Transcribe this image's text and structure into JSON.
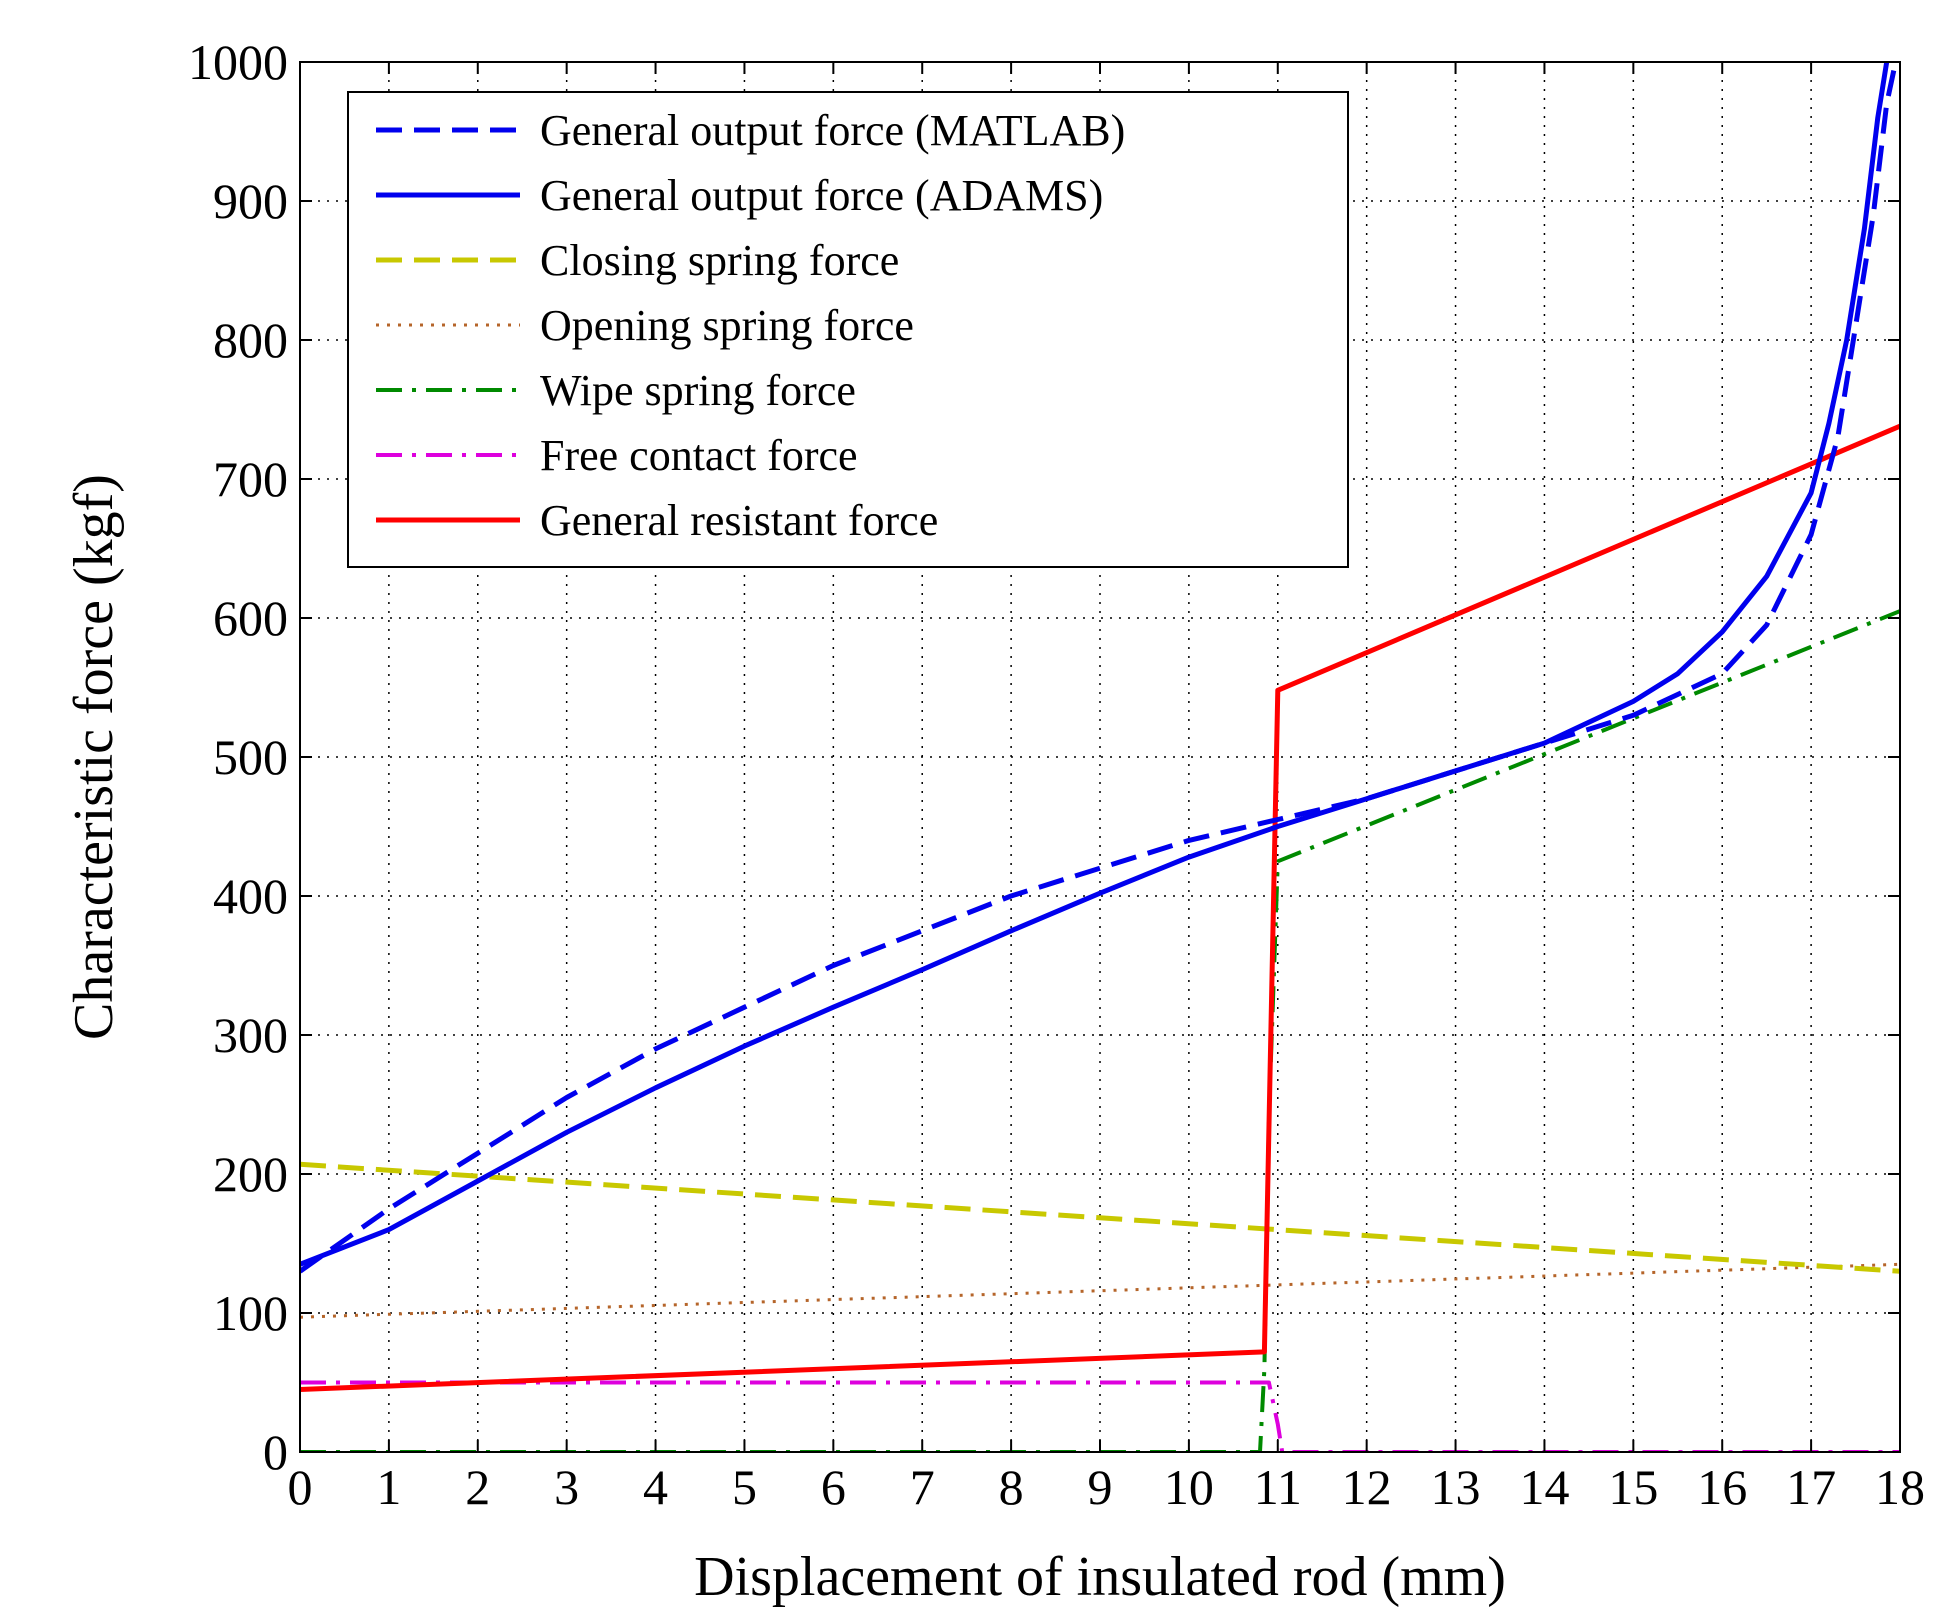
{
  "chart_data": {
    "type": "line",
    "title": "",
    "xlabel": "Displacement of insulated rod (mm)",
    "ylabel": "Characteristic force (kgf)",
    "xlim": [
      0,
      18
    ],
    "ylim": [
      0,
      1000
    ],
    "xticks": [
      0,
      1,
      2,
      3,
      4,
      5,
      6,
      7,
      8,
      9,
      10,
      11,
      12,
      13,
      14,
      15,
      16,
      17,
      18
    ],
    "yticks": [
      0,
      100,
      200,
      300,
      400,
      500,
      600,
      700,
      800,
      900,
      1000
    ],
    "grid": true,
    "legend_position": "top-left",
    "series": [
      {
        "name": "General output force (MATLAB)",
        "color": "#0000ee",
        "style": "dashed",
        "x": [
          0,
          1,
          2,
          3,
          4,
          5,
          6,
          7,
          8,
          9,
          10,
          11,
          12,
          13,
          14,
          15,
          16,
          16.5,
          17,
          17.3,
          17.5,
          17.7,
          17.85,
          17.95
        ],
        "y": [
          130,
          175,
          215,
          255,
          290,
          320,
          350,
          375,
          400,
          420,
          440,
          455,
          470,
          490,
          510,
          530,
          560,
          595,
          660,
          730,
          810,
          890,
          970,
          1000
        ]
      },
      {
        "name": "General output force (ADAMS)",
        "color": "#0000ee",
        "style": "solid",
        "x": [
          0,
          1,
          2,
          3,
          4,
          5,
          6,
          7,
          8,
          9,
          10,
          11,
          12,
          13,
          14,
          15,
          15.5,
          16,
          16.5,
          17,
          17.2,
          17.4,
          17.6,
          17.75,
          17.85
        ],
        "y": [
          135,
          160,
          195,
          230,
          262,
          292,
          320,
          347,
          375,
          402,
          428,
          450,
          470,
          490,
          510,
          540,
          560,
          590,
          630,
          690,
          740,
          800,
          880,
          960,
          1000
        ]
      },
      {
        "name": "Closing spring force",
        "color": "#c8c800",
        "style": "dashed",
        "x": [
          0,
          18
        ],
        "y": [
          207,
          130
        ]
      },
      {
        "name": "Opening spring force",
        "color": "#b5652a",
        "style": "dotted",
        "x": [
          0,
          18
        ],
        "y": [
          97,
          135
        ]
      },
      {
        "name": "Wipe spring force",
        "color": "#008a00",
        "style": "dash-dot",
        "x": [
          0,
          10.8,
          10.85,
          10.9,
          11,
          18
        ],
        "y": [
          0,
          0,
          60,
          240,
          425,
          605
        ]
      },
      {
        "name": "Free contact force",
        "color": "#dd00dd",
        "style": "dash-dot",
        "x": [
          0,
          10.9,
          11.0,
          11.05,
          18
        ],
        "y": [
          50,
          50,
          20,
          0,
          0
        ]
      },
      {
        "name": "General resistant force",
        "color": "#ff0000",
        "style": "solid",
        "x": [
          0,
          10.85,
          11.0,
          18
        ],
        "y": [
          45,
          72,
          548,
          738
        ]
      }
    ]
  }
}
